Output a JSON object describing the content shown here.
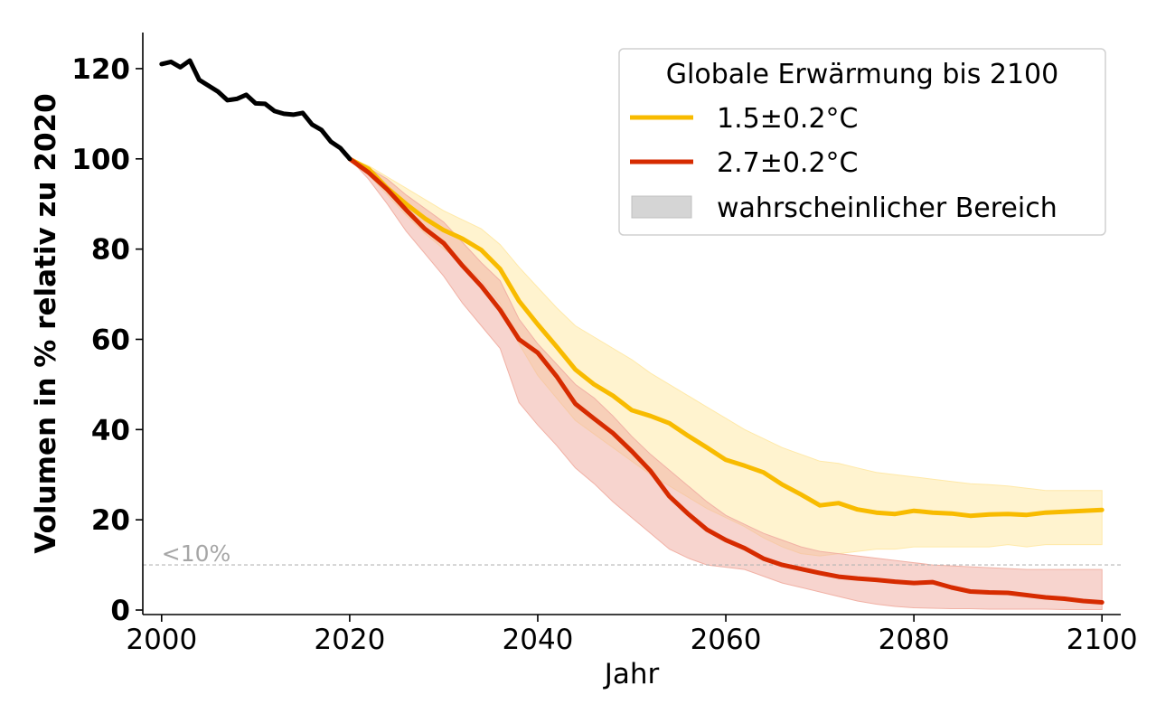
{
  "chart_data": {
    "type": "line",
    "xlabel": "Jahr",
    "ylabel": "Volumen in % relativ zu 2020",
    "xlim": [
      1998,
      2102
    ],
    "ylim": [
      -1,
      128
    ],
    "x_ticks": [
      2000,
      2020,
      2040,
      2060,
      2080,
      2100
    ],
    "y_ticks": [
      0,
      20,
      40,
      60,
      80,
      100,
      120
    ],
    "grid": false,
    "legend": {
      "title": "Globale Erwärmung bis 2100",
      "placement": "top-right",
      "entries": [
        "1.5±0.2°C",
        "2.7±0.2°C",
        "wahrscheinlicher Bereich"
      ]
    },
    "threshold": {
      "y": 10,
      "label": "<10%",
      "color": "#b3b3b3"
    },
    "historical": {
      "color": "#000000",
      "x": [
        2000,
        2001,
        2002,
        2003,
        2004,
        2005,
        2006,
        2007,
        2008,
        2009,
        2010,
        2011,
        2012,
        2013,
        2014,
        2015,
        2016,
        2017,
        2018,
        2019,
        2020
      ],
      "y": [
        121,
        121.5,
        120.3,
        121.8,
        117.5,
        116.2,
        114.9,
        113.0,
        113.3,
        114.2,
        112.3,
        112.2,
        110.6,
        110.0,
        109.8,
        110.2,
        107.6,
        106.4,
        103.8,
        102.4,
        100
      ]
    },
    "series": [
      {
        "name": "1.5±0.2°C",
        "color": "#f8bb00",
        "band_color": "#ffe9a8",
        "x": [
          2020,
          2022,
          2024,
          2026,
          2028,
          2030,
          2032,
          2034,
          2036,
          2038,
          2040,
          2042,
          2044,
          2046,
          2048,
          2050,
          2052,
          2054,
          2056,
          2058,
          2060,
          2062,
          2064,
          2066,
          2068,
          2070,
          2072,
          2074,
          2076,
          2078,
          2080,
          2082,
          2084,
          2086,
          2088,
          2090,
          2092,
          2094,
          2096,
          2098,
          2100
        ],
        "y": [
          100,
          97.8,
          93.5,
          90.0,
          86.8,
          84.2,
          82.3,
          79.8,
          75.6,
          68.5,
          63.3,
          58.4,
          53.3,
          50.0,
          47.5,
          44.3,
          43.0,
          41.4,
          38.6,
          36.0,
          33.3,
          32.0,
          30.5,
          27.8,
          25.6,
          23.2,
          23.7,
          22.3,
          21.6,
          21.3,
          22.0,
          21.6,
          21.4,
          20.9,
          21.2,
          21.3,
          21.1,
          21.6,
          21.8,
          22.0,
          22.2
        ],
        "lower": [
          100,
          96.5,
          92.0,
          87.5,
          83.5,
          80.0,
          77.0,
          73.0,
          68.0,
          59.0,
          52.0,
          47.0,
          42.0,
          39.0,
          36.0,
          33.0,
          30.0,
          27.5,
          25.0,
          22.5,
          20.5,
          18.5,
          16.0,
          14.0,
          12.5,
          12.0,
          12.5,
          13.0,
          13.5,
          13.5,
          14.0,
          14.0,
          14.0,
          14.0,
          14.0,
          14.5,
          14.0,
          14.5,
          14.5,
          14.5,
          14.5
        ],
        "upper": [
          100,
          98.5,
          96.0,
          93.5,
          91.0,
          88.5,
          86.5,
          84.5,
          81.0,
          76.0,
          71.5,
          67.0,
          63.0,
          60.5,
          58.0,
          55.5,
          52.5,
          50.0,
          47.5,
          45.0,
          42.5,
          40.0,
          38.0,
          36.0,
          34.5,
          33.0,
          32.5,
          31.5,
          30.5,
          30.0,
          29.5,
          29.0,
          28.5,
          28.0,
          27.8,
          27.5,
          27.0,
          26.5,
          26.5,
          26.5,
          26.5
        ]
      },
      {
        "name": "2.7±0.2°C",
        "color": "#d62b00",
        "band_color": "#f1b1a5",
        "x": [
          2020,
          2022,
          2024,
          2026,
          2028,
          2030,
          2032,
          2034,
          2036,
          2038,
          2040,
          2042,
          2044,
          2046,
          2048,
          2050,
          2052,
          2054,
          2056,
          2058,
          2060,
          2062,
          2064,
          2066,
          2068,
          2070,
          2072,
          2074,
          2076,
          2078,
          2080,
          2082,
          2084,
          2086,
          2088,
          2090,
          2092,
          2094,
          2096,
          2098,
          2100
        ],
        "y": [
          100,
          97.0,
          93.2,
          88.7,
          84.5,
          81.3,
          76.3,
          71.8,
          66.5,
          60.0,
          57.0,
          51.8,
          45.7,
          42.4,
          39.2,
          35.2,
          30.8,
          25.2,
          21.3,
          17.8,
          15.5,
          13.7,
          11.4,
          10.0,
          9.1,
          8.2,
          7.4,
          7.0,
          6.7,
          6.3,
          6.0,
          6.2,
          5.0,
          4.1,
          3.9,
          3.8,
          3.3,
          2.8,
          2.5,
          2.0,
          1.7
        ],
        "lower": [
          100,
          95.5,
          90.0,
          84.0,
          79.0,
          74.0,
          68.0,
          63.0,
          58.0,
          46.0,
          41.0,
          36.5,
          31.5,
          28.0,
          24.0,
          20.5,
          17.0,
          13.5,
          11.5,
          10.0,
          9.5,
          9.0,
          7.5,
          6.0,
          5.0,
          4.0,
          3.0,
          2.0,
          1.3,
          0.8,
          0.5,
          0.4,
          0.3,
          0.3,
          0.2,
          0.2,
          0.2,
          0.2,
          0.1,
          0.1,
          0.1
        ],
        "upper": [
          100,
          98.0,
          95.5,
          92.0,
          89.0,
          86.0,
          81.5,
          77.0,
          73.0,
          64.5,
          59.0,
          54.5,
          50.0,
          47.0,
          43.0,
          38.5,
          34.5,
          31.0,
          27.5,
          24.0,
          21.0,
          19.0,
          17.0,
          15.5,
          14.0,
          13.0,
          12.5,
          12.0,
          11.5,
          11.0,
          10.5,
          10.0,
          9.8,
          9.6,
          9.4,
          9.2,
          9.0,
          9.0,
          9.0,
          9.0,
          9.0
        ]
      }
    ]
  }
}
